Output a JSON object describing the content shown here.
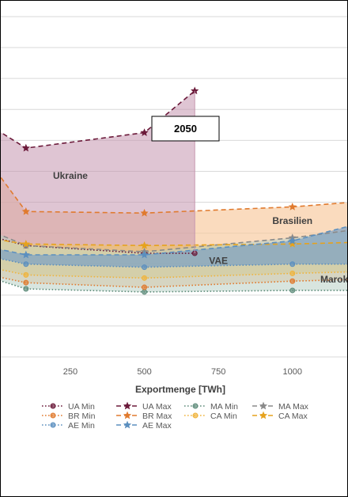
{
  "chart_data": {
    "type": "area",
    "title": "",
    "annotation": "2050",
    "xlabel": "Exportmenge [TWh]",
    "ylabel": "",
    "x_ticks": [
      250,
      500,
      750,
      1000
    ],
    "x_visible_range": [
      15,
      1185
    ],
    "grid": "horizontal",
    "legend_position": "bottom",
    "region_labels": [
      {
        "text": "Ukraine",
        "x": 250,
        "y": 11.5,
        "color": "#404040"
      },
      {
        "text": "Brasilien",
        "x": 1000,
        "y": 8.6,
        "color": "#404040"
      },
      {
        "text": "VAE",
        "x": 750,
        "y": 6.0,
        "color": "#404040"
      },
      {
        "text": "Marokko",
        "x": 1160,
        "y": 4.8,
        "color": "#404040"
      }
    ],
    "series": [
      {
        "name": "UA Min",
        "color": "#6b1a3a",
        "style": "dotted",
        "marker": "circle",
        "points": [
          [
            0,
            7.7
          ],
          [
            100,
            7.2
          ],
          [
            500,
            6.7
          ],
          [
            670,
            6.7
          ]
        ]
      },
      {
        "name": "UA Max",
        "color": "#6b1a3a",
        "style": "dashed",
        "marker": "star",
        "points": [
          [
            0,
            14.7
          ],
          [
            100,
            13.5
          ],
          [
            500,
            14.5
          ],
          [
            670,
            17.2
          ]
        ]
      },
      {
        "name": "MA Min",
        "color": "#5e8c7a",
        "style": "dotted",
        "marker": "circle",
        "points": [
          [
            0,
            5.0
          ],
          [
            100,
            4.4
          ],
          [
            500,
            4.2
          ],
          [
            1000,
            4.3
          ],
          [
            1200,
            4.3
          ]
        ]
      },
      {
        "name": "MA Max",
        "color": "#8a8a8a",
        "style": "dashed",
        "marker": "star",
        "points": [
          [
            0,
            8.0
          ],
          [
            100,
            7.2
          ],
          [
            500,
            6.8
          ],
          [
            1000,
            7.7
          ],
          [
            1200,
            8.2
          ]
        ]
      },
      {
        "name": "BR Min",
        "color": "#e07a2e",
        "style": "dotted",
        "marker": "circle",
        "points": [
          [
            0,
            5.2
          ],
          [
            100,
            4.8
          ],
          [
            500,
            4.5
          ],
          [
            1000,
            4.9
          ],
          [
            1200,
            5.0
          ]
        ]
      },
      {
        "name": "BR Max",
        "color": "#e07a2e",
        "style": "dashed",
        "marker": "star",
        "points": [
          [
            0,
            12.0
          ],
          [
            100,
            9.4
          ],
          [
            500,
            9.3
          ],
          [
            1000,
            9.7
          ],
          [
            1200,
            10.0
          ]
        ]
      },
      {
        "name": "CA Min",
        "color": "#f0b43c",
        "style": "dotted",
        "marker": "circle",
        "points": [
          [
            0,
            5.7
          ],
          [
            100,
            5.3
          ],
          [
            500,
            5.1
          ],
          [
            1000,
            5.4
          ],
          [
            1200,
            5.5
          ]
        ]
      },
      {
        "name": "CA Max",
        "color": "#e6a21d",
        "style": "dashed",
        "marker": "star",
        "points": [
          [
            0,
            7.6
          ],
          [
            100,
            7.3
          ],
          [
            500,
            7.2
          ],
          [
            1000,
            7.3
          ],
          [
            1200,
            7.4
          ]
        ]
      },
      {
        "name": "AE Min",
        "color": "#5b8fbf",
        "style": "dotted",
        "marker": "circle",
        "points": [
          [
            0,
            6.4
          ],
          [
            100,
            6.0
          ],
          [
            500,
            5.8
          ],
          [
            1000,
            6.0
          ],
          [
            1200,
            6.0
          ]
        ]
      },
      {
        "name": "AE Max",
        "color": "#5b8fbf",
        "style": "dashed",
        "marker": "star",
        "points": [
          [
            0,
            7.0
          ],
          [
            100,
            6.6
          ],
          [
            500,
            6.6
          ],
          [
            1000,
            7.5
          ],
          [
            1200,
            8.5
          ]
        ]
      }
    ],
    "bands": [
      {
        "name": "BR",
        "color": "#f7c89b",
        "opacity": 0.65,
        "min": "BR Min",
        "max": "BR Max"
      },
      {
        "name": "UA",
        "color": "#c596ae",
        "opacity": 0.55,
        "min": "UA Min",
        "max": "UA Max"
      },
      {
        "name": "CA",
        "color": "#f2c45e",
        "opacity": 0.55,
        "min": "CA Min",
        "max": "CA Max"
      },
      {
        "name": "MA",
        "color": "#b8cfc4",
        "opacity": 0.55,
        "min": "MA Min",
        "max": "MA Max"
      },
      {
        "name": "AE",
        "color": "#7a9fc3",
        "opacity": 0.7,
        "min": "AE Min",
        "max": "AE Max"
      }
    ],
    "legend": [
      [
        "UA Min",
        "UA Max",
        "MA Min",
        "MA Max"
      ],
      [
        "BR Min",
        "BR Max",
        "CA Min",
        "CA Max"
      ],
      [
        "AE Min",
        "AE Max"
      ]
    ],
    "ylim": [
      0,
      22
    ]
  }
}
